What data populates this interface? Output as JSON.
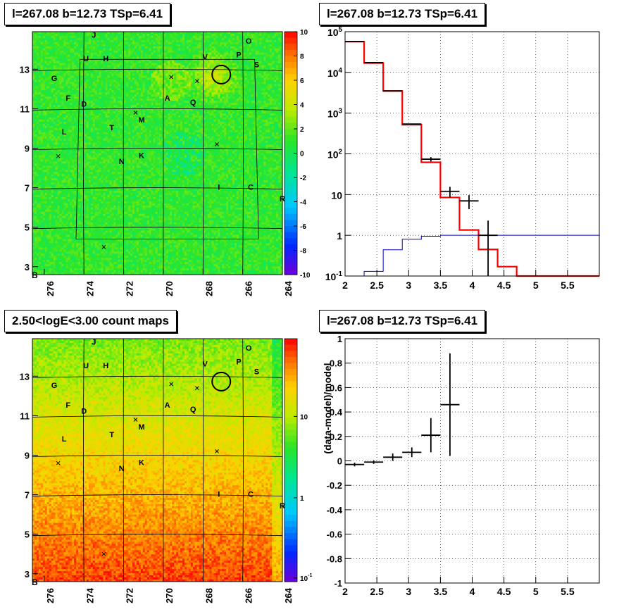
{
  "panels": {
    "top_left_title": "l=267.08 b=12.73 TSp=6.41",
    "top_right_title": "l=267.08 b=12.73 TSp=6.41",
    "bottom_left_title": "2.50<logE<3.00 count maps",
    "bottom_right_title": "l=267.08 b=12.73 TSp=6.41"
  },
  "chart_data": [
    {
      "type": "heatmap",
      "x_ticks": [
        "276",
        "274",
        "272",
        "270",
        "268",
        "266",
        "264"
      ],
      "y_ticks": [
        "13",
        "11",
        "9",
        "7",
        "5",
        "3"
      ],
      "y_tick_suffix": "B",
      "colorbar_ticks": [
        "10",
        "8",
        "6",
        "4",
        "2",
        "0",
        "-2",
        "-4",
        "-6",
        "-8",
        "-10"
      ],
      "colorscale": "rainbow",
      "zrange": [
        -10,
        10
      ],
      "circle": {
        "l": 267.08,
        "b": 12.73
      },
      "source_labels": [
        {
          "t": "J",
          "l": 273.5,
          "b": 14.6
        },
        {
          "t": "O",
          "l": 265.7,
          "b": 14.3
        },
        {
          "t": "U",
          "l": 273.9,
          "b": 13.4
        },
        {
          "t": "H",
          "l": 272.9,
          "b": 13.4
        },
        {
          "t": "V",
          "l": 267.9,
          "b": 13.5
        },
        {
          "t": "P",
          "l": 266.2,
          "b": 13.6
        },
        {
          "t": "S",
          "l": 265.3,
          "b": 13.1
        },
        {
          "t": "G",
          "l": 275.5,
          "b": 12.4
        },
        {
          "t": "F",
          "l": 274.8,
          "b": 11.4
        },
        {
          "t": "D",
          "l": 274.0,
          "b": 11.1
        },
        {
          "t": "A",
          "l": 269.8,
          "b": 11.4
        },
        {
          "t": "Q",
          "l": 268.5,
          "b": 11.2
        },
        {
          "t": "M",
          "l": 271.1,
          "b": 10.3
        },
        {
          "t": "L",
          "l": 275.0,
          "b": 9.7
        },
        {
          "t": "T",
          "l": 272.6,
          "b": 9.9
        },
        {
          "t": "K",
          "l": 271.1,
          "b": 8.5
        },
        {
          "t": "N",
          "l": 272.1,
          "b": 8.2
        },
        {
          "t": "R",
          "l": 264.0,
          "b": 6.3
        },
        {
          "t": "I",
          "l": 267.2,
          "b": 6.9
        },
        {
          "t": "C",
          "l": 265.6,
          "b": 6.9
        }
      ],
      "crosses": [
        {
          "l": 269.6,
          "b": 12.6
        },
        {
          "l": 268.3,
          "b": 12.4
        },
        {
          "l": 271.4,
          "b": 10.8
        },
        {
          "l": 267.3,
          "b": 9.2
        },
        {
          "l": 275.3,
          "b": 8.6
        },
        {
          "l": 273.0,
          "b": 4.0
        }
      ]
    },
    {
      "type": "line",
      "scale_y": "log",
      "xlim": [
        2,
        6
      ],
      "ylim": [
        0.1,
        100000
      ],
      "x_ticks": [
        "2",
        "2.5",
        "3",
        "3.5",
        "4",
        "4.5",
        "5",
        "5.5"
      ],
      "y_ticks": [
        "10^5",
        "10^4",
        "10^3",
        "10^2",
        "10",
        "1",
        "10^-1"
      ],
      "grid": true,
      "series": [
        {
          "color": "#ff0000",
          "edges": [
            2.0,
            2.3,
            2.6,
            2.9,
            3.2,
            3.5,
            3.8,
            4.1,
            4.4,
            4.7,
            5.0,
            5.3,
            5.6,
            6.0
          ],
          "values": [
            57000,
            17000,
            3500,
            520,
            62,
            8.5,
            1.35,
            0.45,
            0.17,
            0.1,
            0.1,
            0.1,
            0.1
          ]
        },
        {
          "color": "#0000cc",
          "edges": [
            2.0,
            2.3,
            2.6,
            2.9,
            3.2,
            3.5,
            3.8,
            4.1,
            4.4,
            4.7,
            5.0,
            5.3,
            5.6,
            6.0
          ],
          "values": [
            0.1,
            0.13,
            0.44,
            0.8,
            0.95,
            1.0,
            1.0,
            1.0,
            1.0,
            1.0,
            1.0,
            1.0,
            1.0
          ]
        }
      ],
      "data_points": [
        {
          "x": 2.15,
          "y": 57500,
          "xlo": 2.0,
          "xhi": 2.3,
          "ylo": 57000,
          "yhi": 58000
        },
        {
          "x": 2.45,
          "y": 17400,
          "xlo": 2.3,
          "xhi": 2.6,
          "ylo": 17200,
          "yhi": 17600
        },
        {
          "x": 2.75,
          "y": 3500,
          "xlo": 2.6,
          "xhi": 2.9,
          "ylo": 3450,
          "yhi": 3550
        },
        {
          "x": 3.05,
          "y": 540,
          "xlo": 2.9,
          "xhi": 3.2,
          "ylo": 525,
          "yhi": 555
        },
        {
          "x": 3.35,
          "y": 74,
          "xlo": 3.2,
          "xhi": 3.5,
          "ylo": 65,
          "yhi": 83
        },
        {
          "x": 3.65,
          "y": 12,
          "xlo": 3.5,
          "xhi": 3.8,
          "ylo": 8.5,
          "yhi": 15.5
        },
        {
          "x": 3.95,
          "y": 7,
          "xlo": 3.8,
          "xhi": 4.1,
          "ylo": 4.4,
          "yhi": 9.7
        },
        {
          "x": 4.25,
          "y": 1.0,
          "xlo": 4.1,
          "xhi": 4.4,
          "ylo": 0.1,
          "yhi": 2.3
        }
      ]
    },
    {
      "type": "heatmap",
      "x_ticks": [
        "276",
        "274",
        "272",
        "270",
        "268",
        "266",
        "264"
      ],
      "y_ticks": [
        "13",
        "11",
        "9",
        "7",
        "5",
        "3"
      ],
      "y_tick_suffix": "B",
      "colorbar_ticks": [
        "10",
        "1",
        "10^-1"
      ],
      "colorscale": "rainbow",
      "scale_z": "log",
      "circle": {
        "l": 267.08,
        "b": 12.73
      }
    },
    {
      "type": "scatter",
      "xlim": [
        2,
        6
      ],
      "ylim": [
        -1,
        1
      ],
      "ylabel": "(data-model)/model",
      "x_ticks": [
        "2",
        "2.5",
        "3",
        "3.5",
        "4",
        "4.5",
        "5",
        "5.5"
      ],
      "y_ticks": [
        "1",
        "0.8",
        "0.6",
        "0.4",
        "0.2",
        "0",
        "-0.2",
        "-0.4",
        "-0.6",
        "-0.8",
        "-1"
      ],
      "grid": true,
      "points": [
        {
          "x": 2.15,
          "y": -0.03,
          "xlo": 2.0,
          "xhi": 2.3,
          "ylo": -0.045,
          "yhi": -0.015
        },
        {
          "x": 2.45,
          "y": -0.01,
          "xlo": 2.3,
          "xhi": 2.6,
          "ylo": -0.025,
          "yhi": 0.005
        },
        {
          "x": 2.75,
          "y": 0.03,
          "xlo": 2.6,
          "xhi": 2.9,
          "ylo": 0.0,
          "yhi": 0.06
        },
        {
          "x": 3.05,
          "y": 0.07,
          "xlo": 2.9,
          "xhi": 3.2,
          "ylo": 0.03,
          "yhi": 0.11
        },
        {
          "x": 3.35,
          "y": 0.21,
          "xlo": 3.2,
          "xhi": 3.5,
          "ylo": 0.07,
          "yhi": 0.35
        },
        {
          "x": 3.65,
          "y": 0.46,
          "xlo": 3.5,
          "xhi": 3.8,
          "ylo": 0.04,
          "yhi": 0.88
        }
      ]
    }
  ]
}
